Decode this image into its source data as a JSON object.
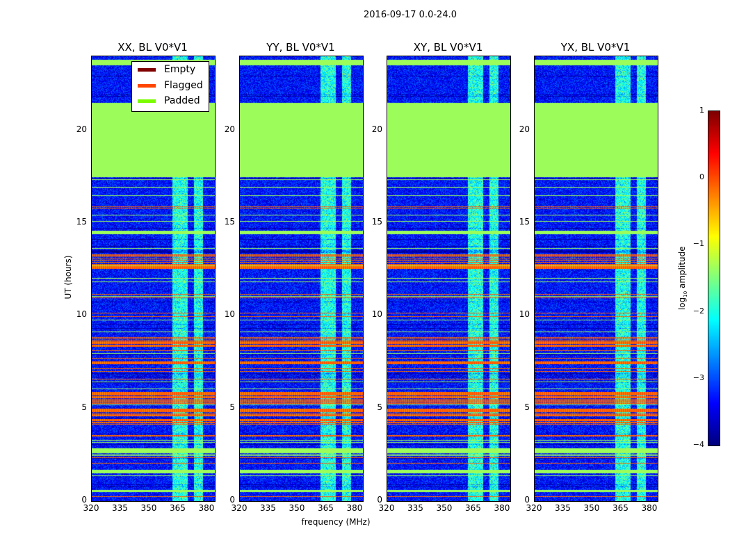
{
  "chart_data": {
    "type": "heatmap",
    "title": "2016-09-17 0.0-24.0",
    "panels": [
      {
        "title": "XX, BL V0*V1"
      },
      {
        "title": "YY, BL V0*V1"
      },
      {
        "title": "XY, BL V0*V1"
      },
      {
        "title": "YX, BL V0*V1"
      }
    ],
    "xlabel": "frequency (MHz)",
    "ylabel": "UT (hours)",
    "xlim": [
      320,
      384
    ],
    "ylim": [
      0,
      24
    ],
    "xticks": [
      "320",
      "335",
      "350",
      "365",
      "380"
    ],
    "xtick_values": [
      320,
      335,
      350,
      365,
      380
    ],
    "yticks": [
      "0",
      "5",
      "10",
      "15",
      "20"
    ],
    "ytick_values": [
      0,
      5,
      10,
      15,
      20
    ],
    "colorbar": {
      "label": "log10 amplitude",
      "label_main": "log",
      "label_sub": "10",
      "label_tail": " amplitude",
      "range": [
        -4,
        1
      ],
      "ticks": [
        "1",
        "0",
        "−1",
        "−2",
        "−3",
        "−4"
      ],
      "tick_values": [
        1,
        0,
        -1,
        -2,
        -3,
        -4
      ]
    },
    "legend": {
      "placement": "upper-left of first panel",
      "entries": [
        {
          "label": "Empty",
          "color": "#800000"
        },
        {
          "label": "Flagged",
          "color": "#ff4500"
        },
        {
          "label": "Padded",
          "color": "#7cfc00"
        }
      ]
    },
    "padded_hours": [
      [
        17.5,
        21.5
      ],
      [
        23.5,
        23.8
      ],
      [
        14.4,
        14.6
      ],
      [
        1.5,
        1.7
      ],
      [
        0.5,
        0.6
      ],
      [
        2.6,
        2.8
      ]
    ],
    "flagged_hours": [
      [
        3.4,
        3.7
      ],
      [
        4.0,
        5.0
      ],
      [
        5.2,
        5.9
      ],
      [
        7.4,
        7.6
      ],
      [
        8.0,
        8.9
      ],
      [
        12.5,
        13.4
      ],
      [
        10.9,
        11.0
      ],
      [
        0.2,
        0.3
      ]
    ],
    "rfi_channels_mhz": [
      [
        362,
        370
      ],
      [
        373,
        378
      ]
    ],
    "background_log_amplitude": -3.3
  }
}
